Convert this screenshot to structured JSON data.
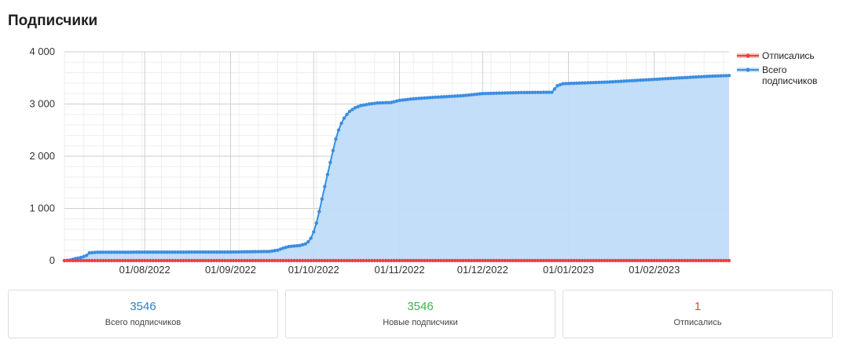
{
  "page": {
    "title": "Подписчики"
  },
  "chart_data": {
    "type": "area",
    "title": "",
    "xlabel": "",
    "ylabel": "",
    "ylim": [
      0,
      4000
    ],
    "yticks": [
      0,
      1000,
      2000,
      3000,
      4000
    ],
    "ytick_labels": [
      "0",
      "1 000",
      "2 000",
      "3 000",
      "4 000"
    ],
    "xlim": [
      "2022-07-03",
      "2023-02-28"
    ],
    "xtick_labels": [
      "01/08/2022",
      "01/09/2022",
      "01/10/2022",
      "01/11/2022",
      "01/12/2022",
      "01/01/2023",
      "01/02/2023"
    ],
    "xtick_dates": [
      "2022-08-01",
      "2022-09-01",
      "2022-10-01",
      "2022-11-01",
      "2022-12-01",
      "2023-01-01",
      "2023-02-01"
    ],
    "grid": true,
    "legend_position": "right",
    "series": [
      {
        "name": "Всего подписчиков",
        "color": "#3a8ee0",
        "fill": "#bfdcf8",
        "keypoints": [
          [
            "2022-07-03",
            0
          ],
          [
            "2022-07-05",
            10
          ],
          [
            "2022-07-07",
            40
          ],
          [
            "2022-07-09",
            60
          ],
          [
            "2022-07-11",
            100
          ],
          [
            "2022-07-12",
            150
          ],
          [
            "2022-07-15",
            160
          ],
          [
            "2022-08-01",
            162
          ],
          [
            "2022-09-01",
            165
          ],
          [
            "2022-09-15",
            175
          ],
          [
            "2022-09-18",
            200
          ],
          [
            "2022-09-20",
            240
          ],
          [
            "2022-09-22",
            270
          ],
          [
            "2022-09-24",
            280
          ],
          [
            "2022-09-26",
            290
          ],
          [
            "2022-09-28",
            320
          ],
          [
            "2022-09-29",
            360
          ],
          [
            "2022-09-30",
            430
          ],
          [
            "2022-10-01",
            550
          ],
          [
            "2022-10-02",
            720
          ],
          [
            "2022-10-03",
            940
          ],
          [
            "2022-10-04",
            1180
          ],
          [
            "2022-10-05",
            1420
          ],
          [
            "2022-10-06",
            1650
          ],
          [
            "2022-10-07",
            1880
          ],
          [
            "2022-10-08",
            2110
          ],
          [
            "2022-10-09",
            2330
          ],
          [
            "2022-10-10",
            2500
          ],
          [
            "2022-10-11",
            2630
          ],
          [
            "2022-10-12",
            2730
          ],
          [
            "2022-10-13",
            2800
          ],
          [
            "2022-10-14",
            2860
          ],
          [
            "2022-10-16",
            2930
          ],
          [
            "2022-10-18",
            2970
          ],
          [
            "2022-10-21",
            3000
          ],
          [
            "2022-10-24",
            3020
          ],
          [
            "2022-10-29",
            3030
          ],
          [
            "2022-11-01",
            3070
          ],
          [
            "2022-11-06",
            3100
          ],
          [
            "2022-11-14",
            3130
          ],
          [
            "2022-11-24",
            3160
          ],
          [
            "2022-12-01",
            3200
          ],
          [
            "2022-12-15",
            3220
          ],
          [
            "2022-12-26",
            3225
          ],
          [
            "2022-12-28",
            3350
          ],
          [
            "2022-12-30",
            3390
          ],
          [
            "2023-01-15",
            3420
          ],
          [
            "2023-01-28",
            3460
          ],
          [
            "2023-02-10",
            3500
          ],
          [
            "2023-02-20",
            3530
          ],
          [
            "2023-02-28",
            3546
          ]
        ]
      },
      {
        "name": "Отписались",
        "color": "#e8433a",
        "fill": "#f5b7b3",
        "keypoints": [
          [
            "2022-07-03",
            0
          ],
          [
            "2023-02-28",
            1
          ]
        ]
      }
    ]
  },
  "legend": [
    {
      "label": "Отписались",
      "color": "#e8433a",
      "fill": "#f5b7b3"
    },
    {
      "label": "Всего подписчиков",
      "color": "#3a8ee0",
      "fill": "#bfdcf8"
    }
  ],
  "cards": [
    {
      "value": "3546",
      "label": "Всего подписчиков",
      "color": "#2f80c8"
    },
    {
      "value": "3546",
      "label": "Новые подписчики",
      "color": "#3bb54a"
    },
    {
      "value": "1",
      "label": "Отписались",
      "color": "#e0463f"
    }
  ]
}
